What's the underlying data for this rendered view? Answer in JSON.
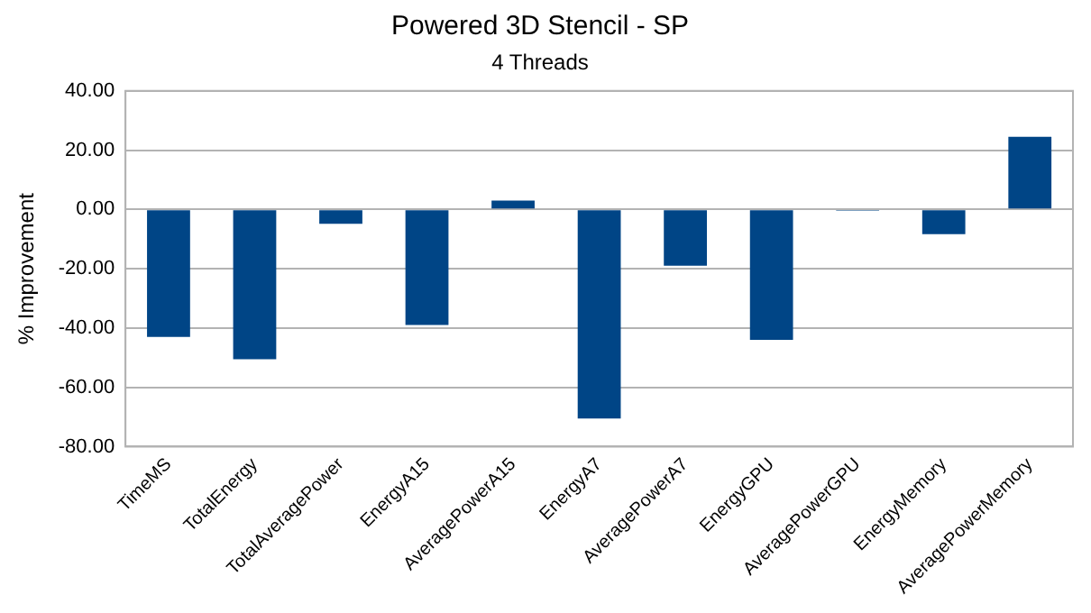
{
  "chart_data": {
    "type": "bar",
    "title": "Powered 3D Stencil - SP",
    "subtitle": "4 Threads",
    "ylabel": "% Improvement",
    "categories": [
      "TimeMS",
      "TotalEnergy",
      "TotalAveragePower",
      "EnergyA15",
      "AveragePowerA15",
      "EnergyA7",
      "AveragePowerA7",
      "EnergyGPU",
      "AveragePowerGPU",
      "EnergyMemory",
      "AveragePowerMemory"
    ],
    "values": [
      -43,
      -50.5,
      -4.8,
      -39,
      3,
      -70.5,
      -19,
      -44,
      -0.4,
      -8.3,
      24.5
    ],
    "color": "#004586",
    "ylim": [
      -80,
      40
    ],
    "yticks": [
      {
        "value": -80,
        "label": "-80.00"
      },
      {
        "value": -60,
        "label": "-60.00"
      },
      {
        "value": -40,
        "label": "-40.00"
      },
      {
        "value": -20,
        "label": "-20.00"
      },
      {
        "value": 0,
        "label": "0.00"
      },
      {
        "value": 20,
        "label": "20.00"
      },
      {
        "value": 40,
        "label": "40.00"
      }
    ],
    "grid": "y",
    "legend": false
  }
}
